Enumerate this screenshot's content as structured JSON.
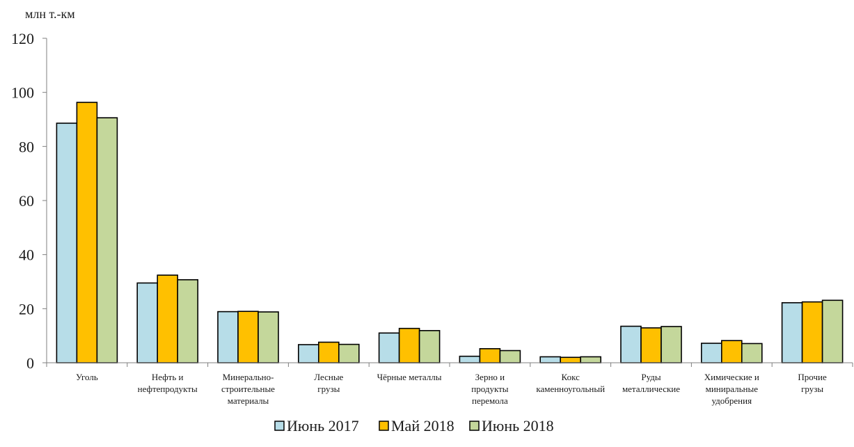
{
  "chart_data": {
    "type": "bar",
    "title": "",
    "xlabel": "",
    "ylabel": "млн т.-км",
    "ylim": [
      0,
      120
    ],
    "yticks": [
      0,
      20,
      40,
      60,
      80,
      100,
      120
    ],
    "grid": false,
    "legend_position": "bottom",
    "categories": [
      [
        "Уголь"
      ],
      [
        "Нефть и",
        "нефтепродукты"
      ],
      [
        "Минерально-",
        "строительные",
        "материалы"
      ],
      [
        "Лесные",
        "грузы"
      ],
      [
        "Чёрные металлы"
      ],
      [
        "Зерно и",
        "продукты",
        "перемола"
      ],
      [
        "Кокс",
        "каменноугольный"
      ],
      [
        "Руды",
        "металлические"
      ],
      [
        "Химические и",
        "миниральные",
        "удобрения"
      ],
      [
        "Прочие",
        "грузы"
      ]
    ],
    "series": [
      {
        "name": "Июнь 2017",
        "color": "#b7dde8",
        "values": [
          88.6,
          29.5,
          18.9,
          6.7,
          11.0,
          2.4,
          2.2,
          13.5,
          7.2,
          22.2
        ]
      },
      {
        "name": "Май 2018",
        "color": "#ffc000",
        "values": [
          96.3,
          32.4,
          19.0,
          7.6,
          12.7,
          5.2,
          2.0,
          12.9,
          8.2,
          22.5
        ]
      },
      {
        "name": "Июнь 2018",
        "color": "#c4d79b",
        "values": [
          90.6,
          30.7,
          18.8,
          6.8,
          11.9,
          4.5,
          2.2,
          13.4,
          7.1,
          23.1
        ]
      }
    ]
  }
}
